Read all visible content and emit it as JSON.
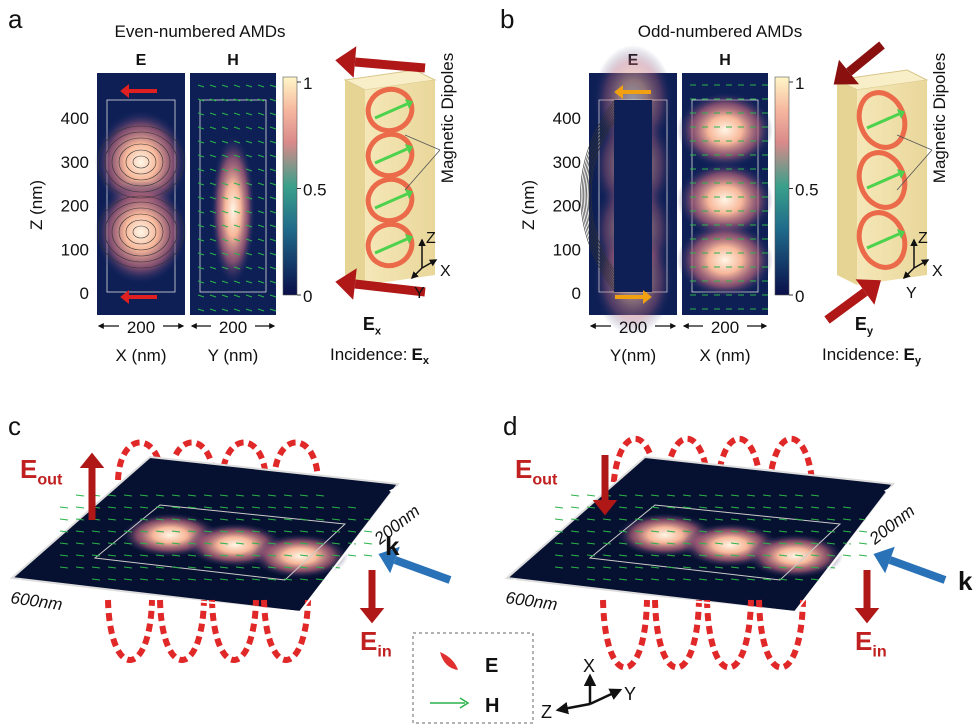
{
  "panel_a": {
    "label": "a",
    "title": "Even-numbered AMDs",
    "map_labels": [
      "E",
      "H"
    ],
    "y_axis_label": "Z (nm)",
    "y_ticks": [
      400,
      300,
      200,
      100,
      0
    ],
    "colorbar_ticks": [
      1,
      0.5,
      0
    ],
    "width_labels": [
      200,
      200
    ],
    "x_axis_labels": [
      "X (nm)",
      "Y (nm)"
    ],
    "dipole_label": "Magnetic Dipoles",
    "axes": [
      "Z",
      "X",
      "Y"
    ],
    "field": {
      "symbol": "E",
      "sub": "x"
    },
    "incidence": {
      "prefix": "Incidence:",
      "symbol": "E",
      "sub": "x"
    }
  },
  "panel_b": {
    "label": "b",
    "title": "Odd-numbered AMDs",
    "map_labels": [
      "E",
      "H"
    ],
    "y_axis_label": "Z (nm)",
    "y_ticks": [
      400,
      300,
      200,
      100,
      0
    ],
    "colorbar_ticks": [
      1,
      0.5,
      0
    ],
    "width_labels": [
      200,
      200
    ],
    "x_axis_labels": [
      "Y(nm)",
      "X (nm)"
    ],
    "dipole_label": "Magnetic Dipoles",
    "axes": [
      "Z",
      "X",
      "Y"
    ],
    "field": {
      "symbol": "E",
      "sub": "y"
    },
    "incidence": {
      "prefix": "Incidence:",
      "symbol": "E",
      "sub": "y"
    }
  },
  "panel_c": {
    "label": "c",
    "e_out": {
      "symbol": "E",
      "sub": "out"
    },
    "width": "200nm",
    "length": "600nm",
    "k": "k",
    "e_in": {
      "symbol": "E",
      "sub": "in"
    }
  },
  "panel_d": {
    "label": "d",
    "e_out": {
      "symbol": "E",
      "sub": "out"
    },
    "width": "200nm",
    "length": "600nm",
    "k": "k",
    "e_in": {
      "symbol": "E",
      "sub": "in"
    }
  },
  "legend": {
    "items": [
      "E",
      "H"
    ],
    "axes": [
      "X",
      "Z",
      "Y"
    ]
  }
}
